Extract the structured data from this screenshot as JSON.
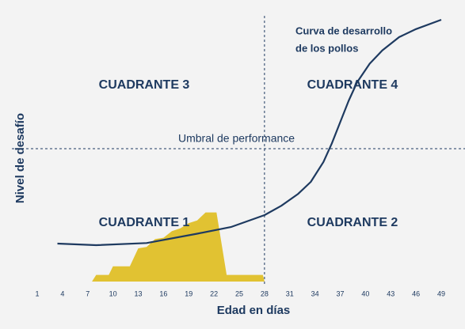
{
  "chart_data": {
    "type": "area",
    "x_label": "Edad en días",
    "y_label": "Nivel de desafío",
    "xlim": [
      1,
      49
    ],
    "ylim": [
      0,
      100
    ],
    "xticks": [
      1,
      4,
      7,
      10,
      13,
      16,
      19,
      22,
      25,
      28,
      31,
      34,
      37,
      40,
      43,
      46,
      49
    ],
    "threshold": {
      "label": "Umbral de performance",
      "value": 50
    },
    "divider_x": 28,
    "quadrants": [
      "CUADRANTE 3",
      "CUADRANTE 4",
      "CUADRANTE 1",
      "CUADRANTE 2"
    ],
    "series": [
      {
        "kind": "area",
        "color": "#e1c232",
        "x": [
          7.5,
          8,
          9.5,
          10,
          12,
          13,
          14,
          15,
          16,
          17,
          18,
          19,
          20,
          21,
          22.3,
          23.5,
          27.8,
          28
        ],
        "values": [
          0,
          2.5,
          2.5,
          5.7,
          5.7,
          12.5,
          13,
          16,
          16.5,
          19,
          20,
          22,
          23,
          26,
          26,
          2.5,
          2.5,
          0
        ]
      },
      {
        "kind": "line",
        "color": "#1e3a60",
        "label": [
          "Curva de desarrollo",
          "de los pollos"
        ],
        "x": [
          3.4,
          8,
          14,
          20,
          24,
          28,
          30,
          32,
          33.5,
          35,
          36,
          37,
          38,
          39,
          40.5,
          42,
          44,
          46,
          49
        ],
        "values": [
          14.3,
          13.7,
          14.5,
          18,
          20.5,
          25,
          28.5,
          33,
          37.5,
          45,
          52,
          60,
          68,
          75,
          82,
          87,
          92,
          95,
          98.5
        ]
      }
    ]
  }
}
